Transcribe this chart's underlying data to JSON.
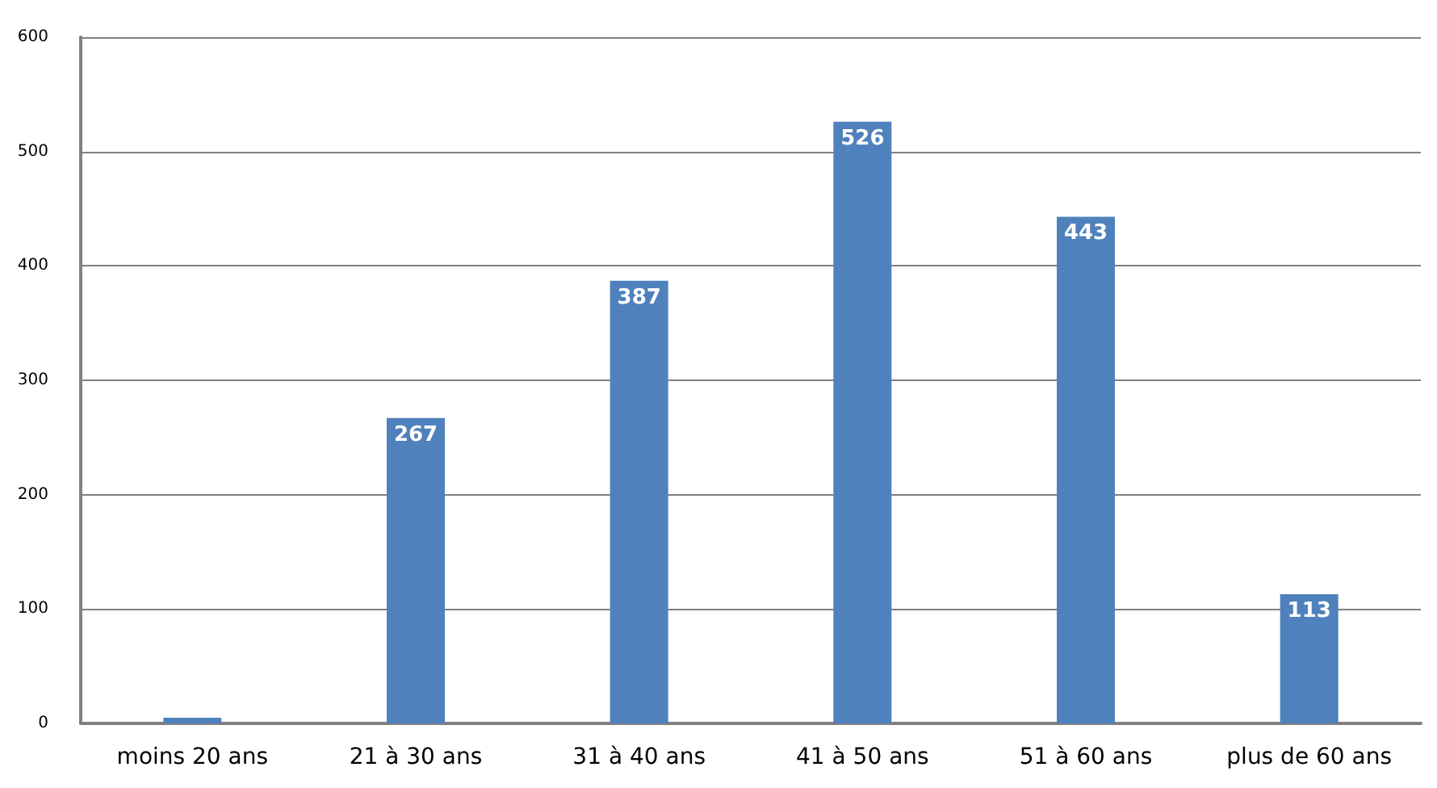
{
  "chart_data": {
    "type": "bar",
    "categories": [
      "moins 20 ans",
      "21 à 30 ans",
      "31 à 40 ans",
      "41 à 50 ans",
      "51 à 60 ans",
      "plus de 60 ans"
    ],
    "values": [
      5,
      267,
      387,
      526,
      443,
      113
    ],
    "value_labels": [
      null,
      "267",
      "387",
      "526",
      "443",
      "113"
    ],
    "color": "#4f81bd",
    "ylim": [
      0,
      600
    ],
    "yticks": [
      0,
      100,
      200,
      300,
      400,
      500,
      600
    ],
    "grid": "y"
  }
}
